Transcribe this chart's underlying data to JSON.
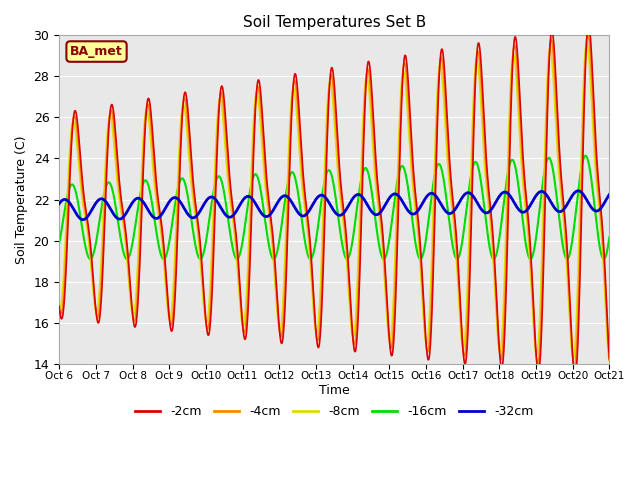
{
  "title": "Soil Temperatures Set B",
  "xlabel": "Time",
  "ylabel": "Soil Temperature (C)",
  "ylim": [
    14,
    30
  ],
  "bg_color": "#e8e8e8",
  "plot_bg_color": "#e8e8e8",
  "line_colors": {
    "-2cm": "#dd0000",
    "-4cm": "#ff8800",
    "-8cm": "#dddd00",
    "-16cm": "#00dd00",
    "-32cm": "#0000cc"
  },
  "line_widths": {
    "-2cm": 1.2,
    "-4cm": 1.2,
    "-8cm": 1.2,
    "-16cm": 1.5,
    "-32cm": 2.0
  },
  "annotation_text": "BA_met",
  "annotation_color": "#880000",
  "annotation_bg": "#ffff99",
  "tick_labels": [
    "Oct 6",
    "Oct 7",
    "Oct 8",
    "Oct 9",
    "Oct 10",
    "Oct 11",
    "Oct 12",
    "Oct 13",
    "Oct 14",
    "Oct 15",
    "Oct 16",
    "Oct 17",
    "Oct 18",
    "Oct 19",
    "Oct 20",
    "Oct 21"
  ],
  "n_days": 15,
  "pts_per_day": 96
}
